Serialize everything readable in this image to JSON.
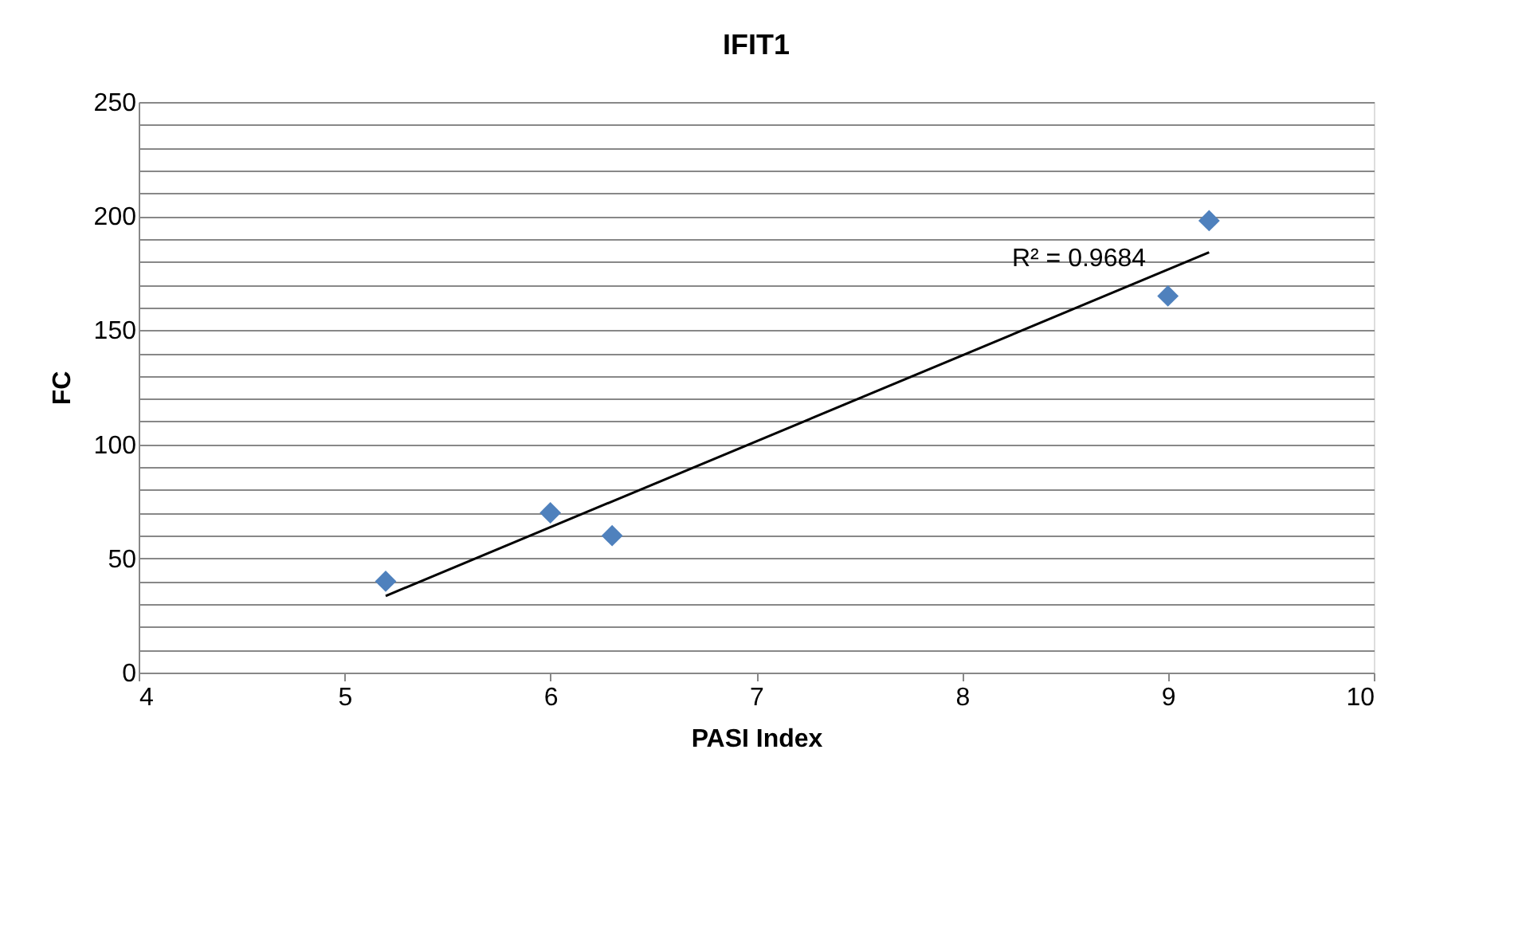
{
  "chart_data": {
    "type": "scatter",
    "title": "IFIT1",
    "xlabel": "PASI Index",
    "ylabel": "FC",
    "xlim": [
      4,
      10
    ],
    "xticks": [
      4,
      5,
      6,
      7,
      8,
      9,
      10
    ],
    "ylim": [
      0,
      250
    ],
    "yticks": [
      0,
      {
        "value": 10,
        "label": null
      },
      {
        "value": 20,
        "label": null
      },
      {
        "value": 30,
        "label": null
      },
      {
        "value": 40,
        "label": null
      },
      50,
      {
        "value": 60,
        "label": null
      },
      {
        "value": 70,
        "label": null
      },
      {
        "value": 80,
        "label": null
      },
      {
        "value": 90,
        "label": null
      },
      100,
      {
        "value": 110,
        "label": null
      },
      {
        "value": 120,
        "label": null
      },
      {
        "value": 130,
        "label": null
      },
      {
        "value": 140,
        "label": null
      },
      150,
      {
        "value": 160,
        "label": null
      },
      {
        "value": 170,
        "label": null
      },
      {
        "value": 180,
        "label": null
      },
      {
        "value": 190,
        "label": null
      },
      200,
      {
        "value": 210,
        "label": null
      },
      {
        "value": 220,
        "label": null
      },
      {
        "value": 230,
        "label": null
      },
      {
        "value": 240,
        "label": null
      },
      250
    ],
    "grid": "y",
    "marker": "diamond",
    "series": [
      {
        "color": "#4f81bd",
        "x": [
          5.2,
          6.0,
          6.3,
          9.0,
          9.2
        ],
        "values": [
          40,
          70,
          60,
          165,
          198
        ]
      },
      {
        "type": "line",
        "color": "#000000",
        "x": [
          5.2,
          9.2
        ],
        "values": [
          33.6,
          184.1
        ],
        "marker": "none"
      }
    ],
    "annotations": [
      "R² = 0.9684"
    ]
  }
}
